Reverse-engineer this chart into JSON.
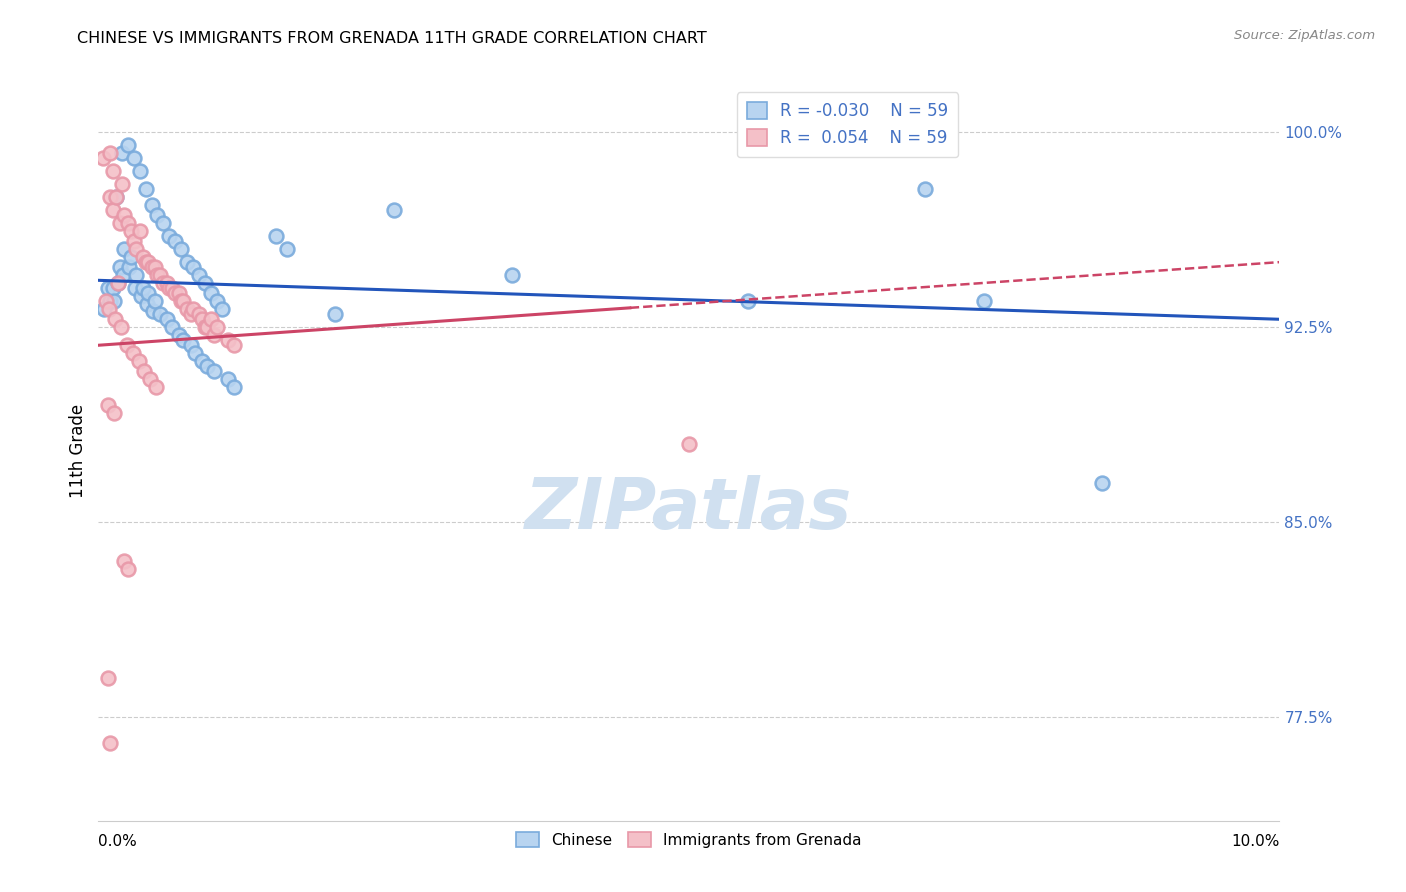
{
  "title": "CHINESE VS IMMIGRANTS FROM GRENADA 11TH GRADE CORRELATION CHART",
  "source": "Source: ZipAtlas.com",
  "ylabel": "11th Grade",
  "xlim": [
    0.0,
    10.0
  ],
  "ylim": [
    73.5,
    102.0
  ],
  "yticks": [
    77.5,
    85.0,
    92.5,
    100.0
  ],
  "xticks": [
    0,
    2,
    4,
    6,
    8,
    10
  ],
  "blue_color_face": "#B8D4F0",
  "blue_color_edge": "#7AABDC",
  "pink_color_face": "#F4C0C8",
  "pink_color_edge": "#E898A8",
  "blue_line_color": "#2255BB",
  "pink_line_color": "#CC4466",
  "grid_color": "#CCCCCC",
  "watermark_color": "#D0E0F0",
  "background_color": "#FFFFFF",
  "blue_scatter_x": [
    0.05,
    0.08,
    0.1,
    0.12,
    0.13,
    0.15,
    0.17,
    0.18,
    0.2,
    0.21,
    0.22,
    0.25,
    0.26,
    0.28,
    0.3,
    0.31,
    0.32,
    0.35,
    0.36,
    0.38,
    0.4,
    0.41,
    0.42,
    0.45,
    0.46,
    0.48,
    0.5,
    0.52,
    0.55,
    0.58,
    0.6,
    0.62,
    0.65,
    0.68,
    0.7,
    0.72,
    0.75,
    0.78,
    0.8,
    0.82,
    0.85,
    0.88,
    0.9,
    0.92,
    0.95,
    0.98,
    1.0,
    1.05,
    1.1,
    1.15,
    1.5,
    1.6,
    2.0,
    2.5,
    3.5,
    5.5,
    7.0,
    7.5,
    8.5
  ],
  "blue_scatter_y": [
    93.2,
    94.0,
    93.5,
    94.0,
    93.5,
    97.5,
    94.2,
    94.8,
    99.2,
    94.5,
    95.5,
    99.5,
    94.8,
    95.2,
    99.0,
    94.0,
    94.5,
    98.5,
    93.7,
    94.0,
    97.8,
    93.4,
    93.8,
    97.2,
    93.1,
    93.5,
    96.8,
    93.0,
    96.5,
    92.8,
    96.0,
    92.5,
    95.8,
    92.2,
    95.5,
    92.0,
    95.0,
    91.8,
    94.8,
    91.5,
    94.5,
    91.2,
    94.2,
    91.0,
    93.8,
    90.8,
    93.5,
    93.2,
    90.5,
    90.2,
    96.0,
    95.5,
    93.0,
    97.0,
    94.5,
    93.5,
    97.8,
    93.5,
    86.5
  ],
  "pink_scatter_x": [
    0.04,
    0.06,
    0.08,
    0.08,
    0.09,
    0.1,
    0.1,
    0.12,
    0.12,
    0.13,
    0.14,
    0.15,
    0.17,
    0.18,
    0.19,
    0.2,
    0.22,
    0.22,
    0.24,
    0.25,
    0.25,
    0.28,
    0.29,
    0.3,
    0.32,
    0.34,
    0.35,
    0.38,
    0.39,
    0.4,
    0.42,
    0.44,
    0.45,
    0.48,
    0.49,
    0.5,
    0.52,
    0.55,
    0.58,
    0.6,
    0.62,
    0.65,
    0.68,
    0.7,
    0.72,
    0.75,
    0.78,
    0.8,
    0.85,
    0.88,
    0.9,
    0.92,
    0.95,
    0.98,
    1.0,
    1.1,
    1.15,
    5.0,
    0.1
  ],
  "pink_scatter_y": [
    99.0,
    93.5,
    89.5,
    79.0,
    93.2,
    99.2,
    97.5,
    98.5,
    97.0,
    89.2,
    92.8,
    97.5,
    94.2,
    96.5,
    92.5,
    98.0,
    96.8,
    83.5,
    91.8,
    96.5,
    83.2,
    96.2,
    91.5,
    95.8,
    95.5,
    91.2,
    96.2,
    95.2,
    90.8,
    95.0,
    95.0,
    90.5,
    94.8,
    94.8,
    90.2,
    94.5,
    94.5,
    94.2,
    94.2,
    94.0,
    94.0,
    93.8,
    93.8,
    93.5,
    93.5,
    93.2,
    93.0,
    93.2,
    93.0,
    92.8,
    92.5,
    92.5,
    92.8,
    92.2,
    92.5,
    92.0,
    91.8,
    88.0,
    76.5
  ],
  "blue_trend_x0": 0.0,
  "blue_trend_x1": 10.0,
  "blue_trend_y0": 94.3,
  "blue_trend_y1": 92.8,
  "pink_trend_x0": 0.0,
  "pink_trend_x1": 10.0,
  "pink_trend_y0": 91.8,
  "pink_trend_y1": 95.0,
  "pink_dash_start": 4.5,
  "legend_top_line1": "R = -0.030    N = 59",
  "legend_top_line2": "R =  0.054    N = 59",
  "legend_bottom_label1": "Chinese",
  "legend_bottom_label2": "Immigrants from Grenada",
  "marker_size": 100,
  "marker_linewidth": 1.8
}
